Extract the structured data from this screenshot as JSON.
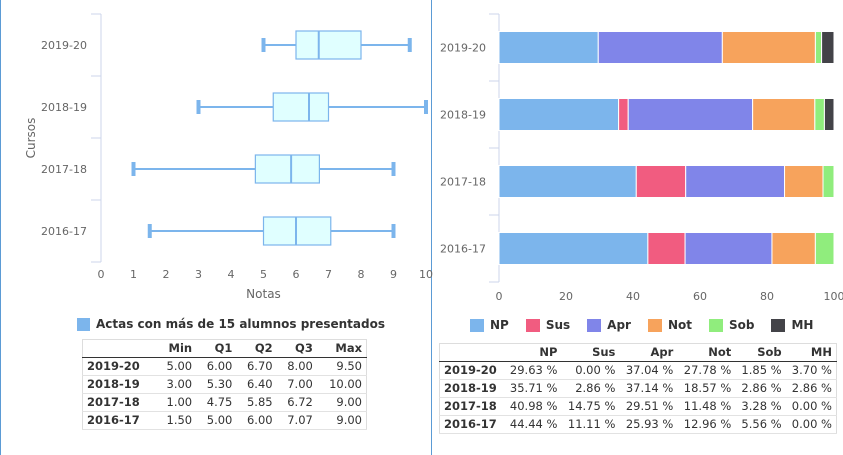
{
  "chart_data": [
    {
      "type": "boxplot",
      "xlabel": "Notas",
      "ylabel": "Cursos",
      "xlim": [
        0,
        10
      ],
      "xticks": [
        "0",
        "1",
        "2",
        "3",
        "4",
        "5",
        "6",
        "7",
        "8",
        "9",
        "10"
      ],
      "categories": [
        "2019-20",
        "2018-19",
        "2017-18",
        "2016-17"
      ],
      "series": [
        {
          "name": "Actas con más de 15 alumnos presentados",
          "color": "#7cb5ec",
          "boxes": [
            {
              "min": 5.0,
              "q1": 6.0,
              "q2": 6.7,
              "q3": 8.0,
              "max": 9.5
            },
            {
              "min": 3.0,
              "q1": 5.3,
              "q2": 6.4,
              "q3": 7.0,
              "max": 10.0
            },
            {
              "min": 1.0,
              "q1": 4.75,
              "q2": 5.85,
              "q3": 6.72,
              "max": 9.0
            },
            {
              "min": 1.5,
              "q1": 5.0,
              "q2": 6.0,
              "q3": 7.07,
              "max": 9.0
            }
          ]
        }
      ],
      "table": {
        "headers": [
          "",
          "Min",
          "Q1",
          "Q2",
          "Q3",
          "Max"
        ],
        "rows": [
          [
            "2019-20",
            "5.00",
            "6.00",
            "6.70",
            "8.00",
            "9.50"
          ],
          [
            "2018-19",
            "3.00",
            "5.30",
            "6.40",
            "7.00",
            "10.00"
          ],
          [
            "2017-18",
            "1.00",
            "4.75",
            "5.85",
            "6.72",
            "9.00"
          ],
          [
            "2016-17",
            "1.50",
            "5.00",
            "6.00",
            "7.07",
            "9.00"
          ]
        ]
      }
    },
    {
      "type": "bar",
      "orientation": "horizontal",
      "stacked": "percent",
      "categories": [
        "2019-20",
        "2018-19",
        "2017-18",
        "2016-17"
      ],
      "xlim": [
        0,
        100
      ],
      "xticks": [
        "0",
        "20",
        "40",
        "60",
        "80",
        "100"
      ],
      "series": [
        {
          "name": "NP",
          "color": "#7cb5ec",
          "values": [
            29.63,
            35.71,
            40.98,
            44.44
          ]
        },
        {
          "name": "Sus",
          "color": "#f15c80",
          "values": [
            0.0,
            2.86,
            14.75,
            11.11
          ]
        },
        {
          "name": "Apr",
          "color": "#8085e9",
          "values": [
            37.04,
            37.14,
            29.51,
            25.93
          ]
        },
        {
          "name": "Not",
          "color": "#f7a35c",
          "values": [
            27.78,
            18.57,
            11.48,
            12.96
          ]
        },
        {
          "name": "Sob",
          "color": "#90ed7d",
          "values": [
            1.85,
            2.86,
            3.28,
            5.56
          ]
        },
        {
          "name": "MH",
          "color": "#434348",
          "values": [
            3.7,
            2.86,
            0.0,
            0.0
          ]
        }
      ],
      "table": {
        "headers": [
          "",
          "NP",
          "Sus",
          "Apr",
          "Not",
          "Sob",
          "MH"
        ],
        "rows": [
          [
            "2019-20",
            "29.63 %",
            "0.00 %",
            "37.04 %",
            "27.78 %",
            "1.85 %",
            "3.70 %"
          ],
          [
            "2018-19",
            "35.71 %",
            "2.86 %",
            "37.14 %",
            "18.57 %",
            "2.86 %",
            "2.86 %"
          ],
          [
            "2017-18",
            "40.98 %",
            "14.75 %",
            "29.51 %",
            "11.48 %",
            "3.28 %",
            "0.00 %"
          ],
          [
            "2016-17",
            "44.44 %",
            "11.11 %",
            "25.93 %",
            "12.96 %",
            "5.56 %",
            "0.00 %"
          ]
        ]
      }
    }
  ]
}
